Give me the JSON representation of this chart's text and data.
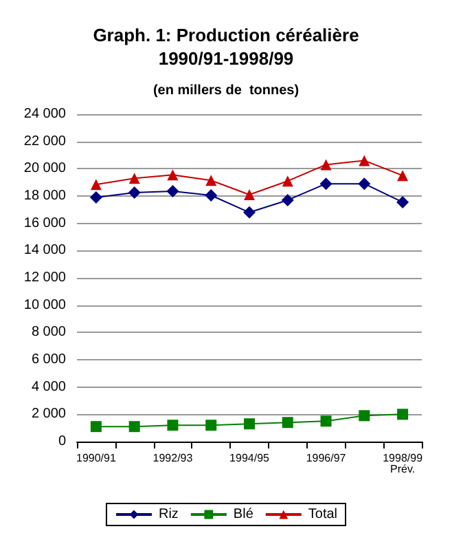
{
  "chart_data": {
    "type": "line",
    "title": "Graph. 1: Production céréalière\n1990/91-1998/99",
    "subtitle": "(en millers de  tonnes)",
    "categories": [
      "1990/91",
      null,
      "1992/93",
      null,
      "1994/95",
      null,
      "1996/97",
      null,
      "1998/99\nPrév."
    ],
    "series": [
      {
        "name": "Riz",
        "color": "#000080",
        "marker": "diamond",
        "values": [
          17900,
          18250,
          18350,
          18050,
          16800,
          17700,
          18900,
          18900,
          17550
        ]
      },
      {
        "name": "Blé",
        "color": "#008000",
        "marker": "square",
        "values": [
          1100,
          1100,
          1200,
          1200,
          1300,
          1400,
          1500,
          1900,
          2000
        ]
      },
      {
        "name": "Total",
        "color": "#cc0000",
        "marker": "triangle",
        "values": [
          18850,
          19300,
          19550,
          19150,
          18100,
          19100,
          20300,
          20600,
          19500
        ]
      }
    ],
    "ylim": [
      0,
      24000
    ],
    "yticks": [
      {
        "value": 0,
        "label": "0"
      },
      {
        "value": 2000,
        "label": "2 000"
      },
      {
        "value": 4000,
        "label": "4 000"
      },
      {
        "value": 6000,
        "label": "6 000"
      },
      {
        "value": 8000,
        "label": "8 000"
      },
      {
        "value": 10000,
        "label": "10 000"
      },
      {
        "value": 12000,
        "label": "12 000"
      },
      {
        "value": 14000,
        "label": "14 000"
      },
      {
        "value": 16000,
        "label": "16 000"
      },
      {
        "value": 18000,
        "label": "18 000"
      },
      {
        "value": 20000,
        "label": "20 000"
      },
      {
        "value": 22000,
        "label": "22 000"
      },
      {
        "value": 24000,
        "label": "24 000"
      }
    ],
    "grid": "y",
    "legend": "bottom",
    "line_style": "solid"
  }
}
